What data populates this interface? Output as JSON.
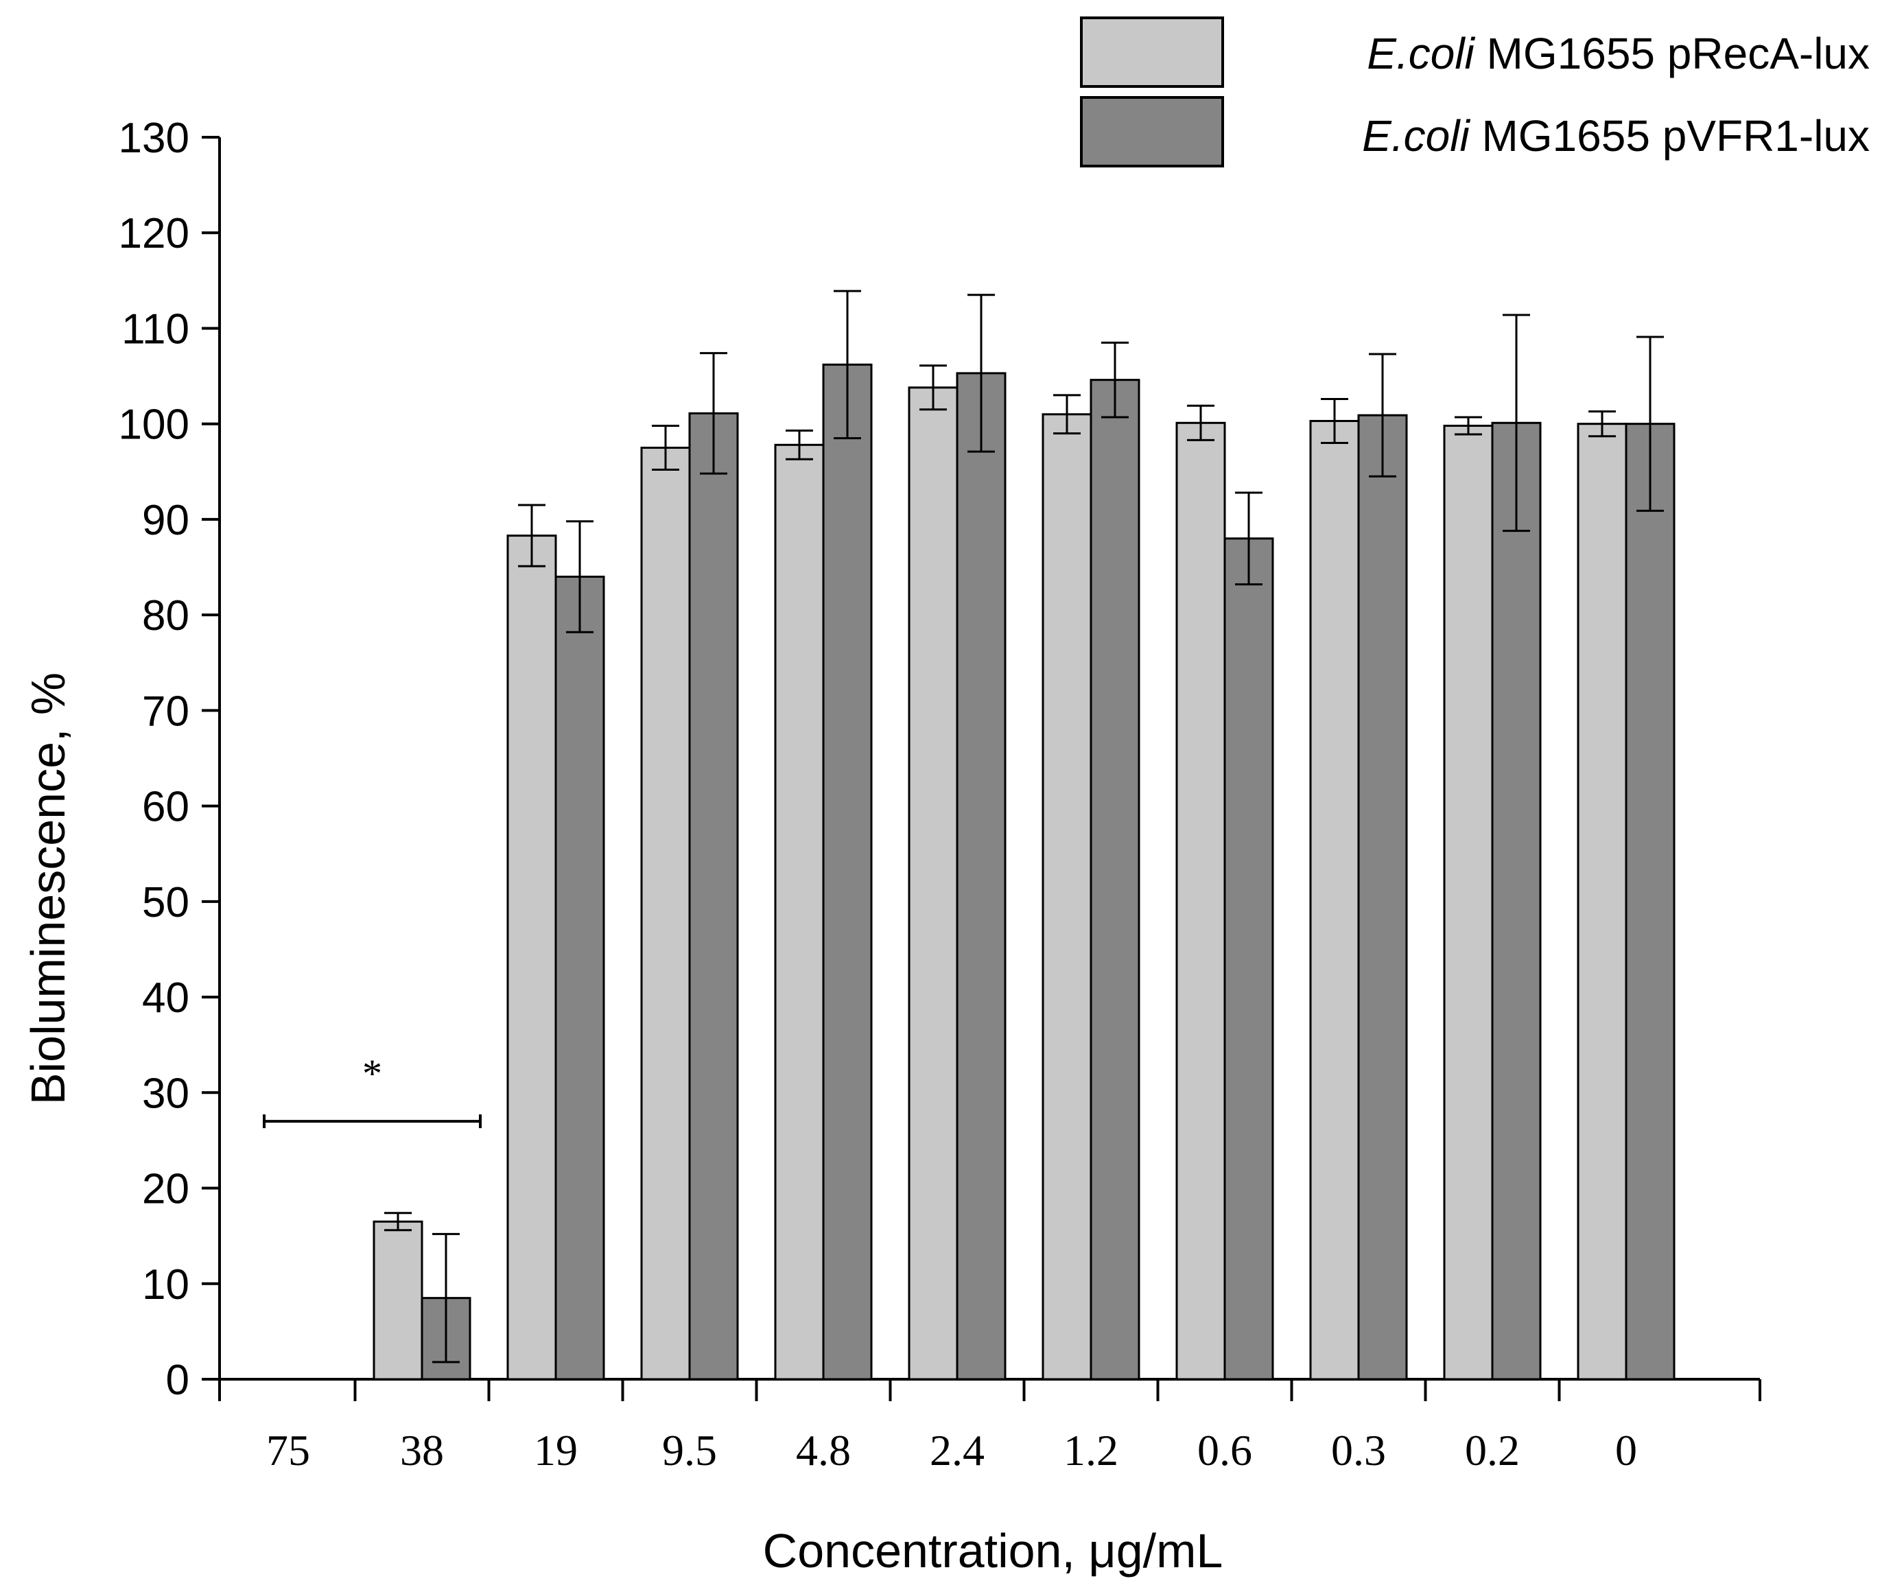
{
  "chart_data": {
    "type": "bar",
    "title": "",
    "xlabel": "Concentration, μg/mL",
    "ylabel": "Bioluminescence, %",
    "ylim": [
      0,
      130
    ],
    "yticks": [
      "0",
      "10",
      "20",
      "30",
      "40",
      "50",
      "60",
      "70",
      "80",
      "90",
      "100",
      "110",
      "120",
      "130"
    ],
    "categories": [
      "75",
      "38",
      "19",
      "9.5",
      "4.8",
      "2.4",
      "1.2",
      "0.6",
      "0.3",
      "0.2",
      "0"
    ],
    "series": [
      {
        "name_italic": "E.coli",
        "name_rest": " MG1655 pRecA-lux",
        "color": "#c8c8c8",
        "values": [
          0,
          16.5,
          88.3,
          97.5,
          97.8,
          103.8,
          101.0,
          100.1,
          100.3,
          99.8,
          100.0
        ],
        "errors": [
          0,
          0.9,
          3.2,
          2.3,
          1.5,
          2.3,
          2.0,
          1.8,
          2.3,
          0.9,
          1.3
        ]
      },
      {
        "name_italic": "E.coli",
        "name_rest": " MG1655 pVFR1-lux",
        "color": "#858585",
        "values": [
          0,
          8.5,
          84.0,
          101.1,
          106.2,
          105.3,
          104.6,
          88.0,
          100.9,
          100.1,
          100.0
        ],
        "errors": [
          0,
          6.7,
          5.8,
          6.3,
          7.7,
          8.2,
          3.9,
          4.8,
          6.4,
          11.3,
          9.1
        ]
      }
    ],
    "annotation": {
      "text": "*",
      "y_value": 27,
      "span_categories": [
        "75",
        "38"
      ]
    },
    "legend_position": "top-right"
  }
}
